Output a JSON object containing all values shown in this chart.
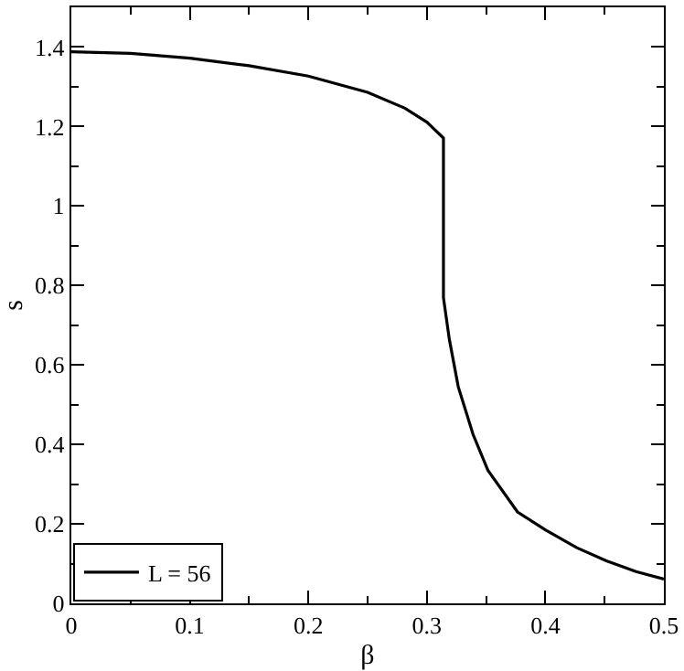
{
  "chart_data": {
    "type": "line",
    "xlabel": "β",
    "ylabel": "s",
    "x": [
      0,
      0.05,
      0.1,
      0.15,
      0.2,
      0.25,
      0.2815,
      0.3,
      0.314,
      0.314,
      0.319,
      0.3265,
      0.339,
      0.3515,
      0.3765,
      0.4,
      0.4265,
      0.4515,
      0.4765,
      0.5
    ],
    "series": [
      {
        "name": "L = 56",
        "color": "#000000",
        "values": [
          1.388,
          1.384,
          1.372,
          1.353,
          1.327,
          1.286,
          1.246,
          1.211,
          1.171,
          0.769,
          0.664,
          0.545,
          0.425,
          0.335,
          0.23,
          0.185,
          0.14,
          0.107,
          0.08,
          0.061
        ]
      }
    ],
    "xlim": [
      0,
      0.5
    ],
    "xticks": [
      0,
      0.1,
      0.2,
      0.3,
      0.4,
      0.5
    ],
    "ylim": [
      0,
      1.5
    ],
    "yticks": [
      0,
      0.2,
      0.4,
      0.6,
      0.8,
      1,
      1.2,
      1.4
    ],
    "legend": "bottom left",
    "marker": "none",
    "line_style": "solid"
  }
}
